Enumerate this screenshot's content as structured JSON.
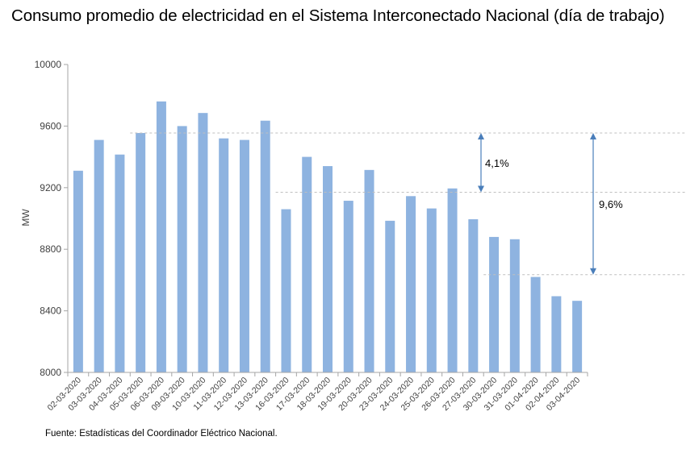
{
  "chart_data": {
    "type": "bar",
    "title": "Consumo promedio de electricidad en el Sistema Interconectado Nacional (día de trabajo)",
    "ylabel": "MW",
    "xlabel": "",
    "ylim": [
      8000,
      10000
    ],
    "yticks": [
      "8000",
      "8400",
      "8800",
      "9200",
      "9600",
      "10000"
    ],
    "grid": false,
    "categories": [
      "02-03-2020",
      "03-03-2020",
      "04-03-2020",
      "05-03-2020",
      "06-03-2020",
      "09-03-2020",
      "10-03-2020",
      "11-03-2020",
      "12-03-2020",
      "13-03-2020",
      "16-03-2020",
      "17-03-2020",
      "18-03-2020",
      "19-03-2020",
      "20-03-2020",
      "23-03-2020",
      "24-03-2020",
      "25-03-2020",
      "26-03-2020",
      "27-03-2020",
      "30-03-2020",
      "31-03-2020",
      "01-04-2020",
      "02-04-2020",
      "03-04-2020"
    ],
    "values": [
      9310,
      9510,
      9415,
      9555,
      9760,
      9600,
      9685,
      9520,
      9510,
      9635,
      9060,
      9400,
      9340,
      9115,
      9315,
      8985,
      9145,
      9065,
      9195,
      8995,
      8880,
      8865,
      8620,
      8495,
      8465
    ],
    "color": "#8EB3E0",
    "reference_lines": [
      {
        "value": 9555,
        "x_from": "05-03-2020"
      },
      {
        "value": 9170,
        "x_from": "16-03-2020"
      },
      {
        "value": 8635,
        "x_from": "30-03-2020"
      }
    ],
    "annotations": [
      {
        "label": "4,1%",
        "from": 9555,
        "to": 9170
      },
      {
        "label": "9,6%",
        "from": 9555,
        "to": 8635
      }
    ],
    "footnote": "Fuente: Estadísticas del Coordinador Eléctrico Nacional."
  }
}
